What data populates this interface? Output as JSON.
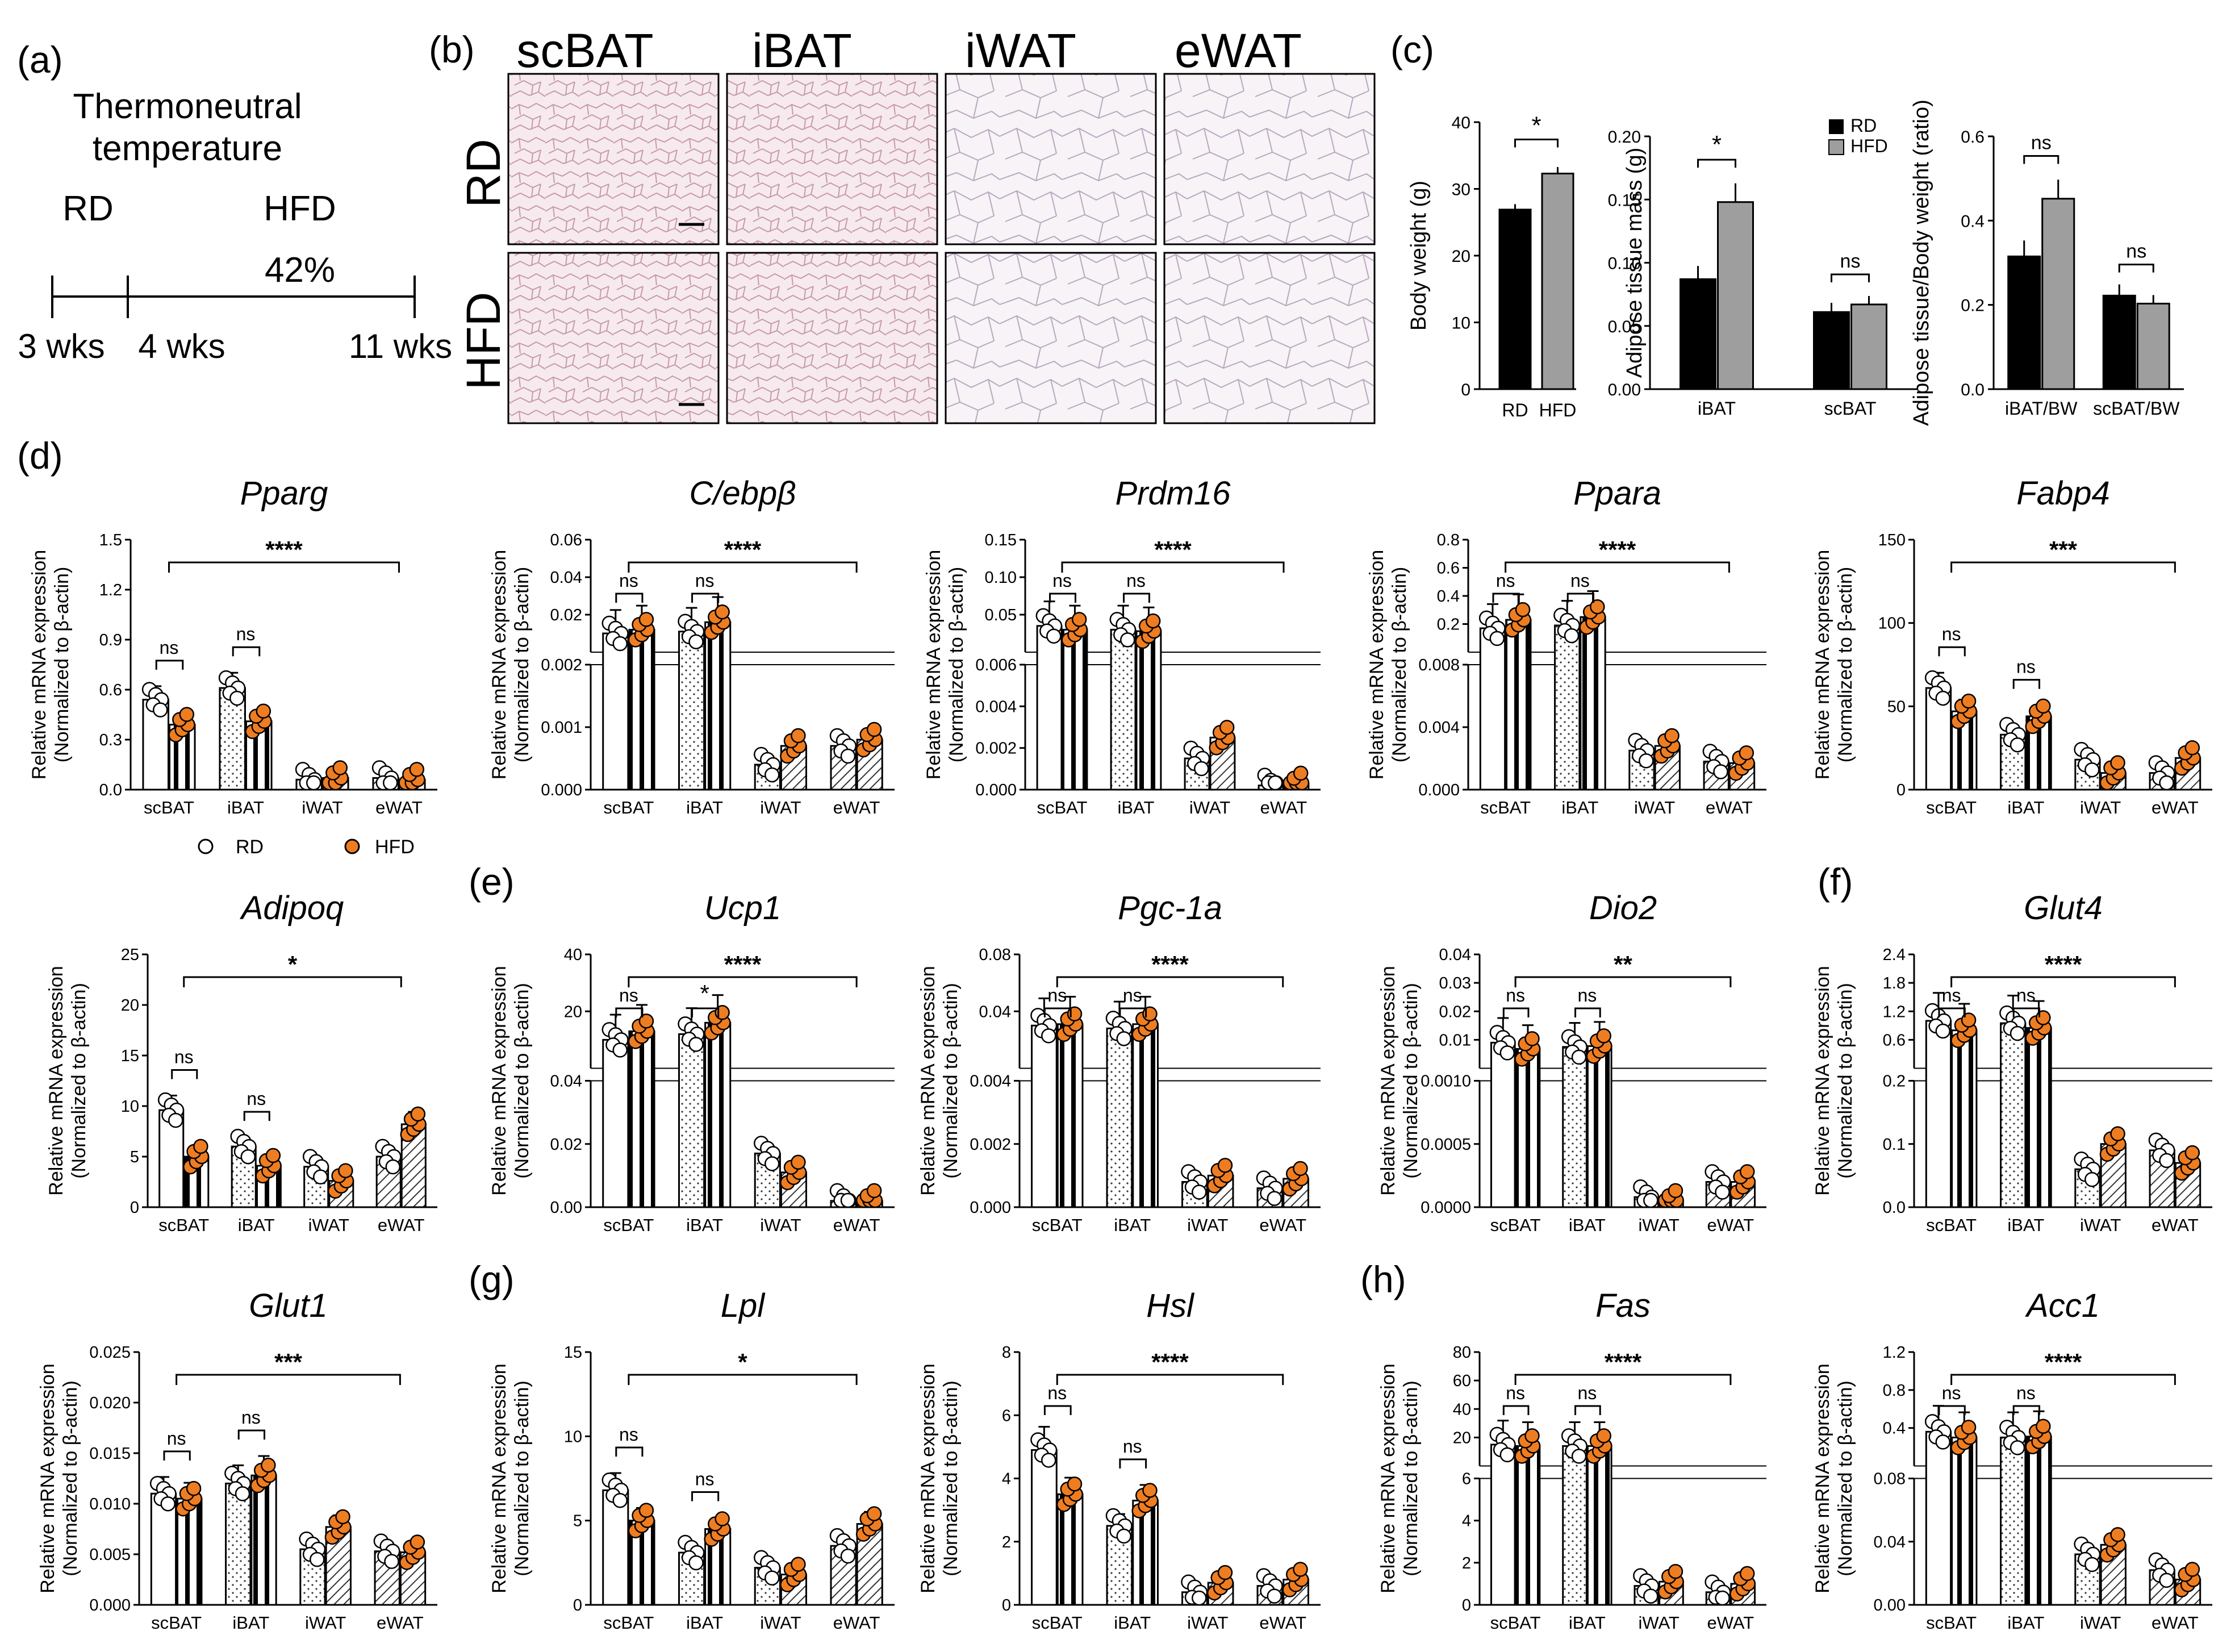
{
  "colors": {
    "rd_fill": "#ffffff",
    "hfd_fill": "#ee7d21",
    "black": "#000000",
    "grey": "#9e9e9e",
    "tissue_pink": "#ecd4d8",
    "tissue_light": "#f3eef3"
  },
  "panel_a": {
    "letter": "(a)",
    "condition_line1": "Thermoneutral",
    "condition_line2": "temperature",
    "rd_label": "RD",
    "hfd_label": "HFD",
    "hfd_pct": "42%",
    "timepoints": [
      "3 wks",
      "4 wks",
      "11 wks"
    ]
  },
  "panel_b": {
    "letter": "(b)",
    "columns": [
      "scBAT",
      "iBAT",
      "iWAT",
      "eWAT"
    ],
    "rows": [
      "RD",
      "HFD"
    ]
  },
  "panel_c": {
    "letter": "(c)",
    "charts": [
      {
        "ylabel": "Body weight (g)",
        "ticks": [
          "0",
          "10",
          "20",
          "30",
          "40"
        ],
        "ylim": [
          0,
          40
        ],
        "series": [
          {
            "name": "RD",
            "values": [
              26.9
            ]
          },
          {
            "name": "HFD",
            "values": [
              32.3
            ]
          }
        ],
        "xtick": [
          "RD",
          "HFD"
        ],
        "sig": [
          "*"
        ]
      },
      {
        "ylabel": "Adipose tissue mass (g)",
        "ticks": [
          "0.00",
          "0.05",
          "0.10",
          "0.15",
          "0.20"
        ],
        "ylim": [
          0,
          0.2
        ],
        "categories": [
          "iBAT",
          "scBAT"
        ],
        "series": [
          {
            "name": "RD",
            "values": [
              0.087,
              0.061
            ]
          },
          {
            "name": "HFD",
            "values": [
              0.148,
              0.067
            ]
          }
        ],
        "sig": [
          "*",
          "ns"
        ]
      },
      {
        "ylabel": "Adipose tissue/Body weight (ratio)",
        "ticks": [
          "0.0",
          "0.2",
          "0.4",
          "0.6"
        ],
        "ylim": [
          0,
          0.6
        ],
        "categories": [
          "iBAT/BW",
          "scBAT/BW"
        ],
        "series": [
          {
            "name": "RD",
            "values": [
              0.315,
              0.222
            ]
          },
          {
            "name": "HFD",
            "values": [
              0.452,
              0.203
            ]
          }
        ],
        "sig": [
          "ns",
          "ns"
        ]
      }
    ],
    "legend": [
      "RD",
      "HFD"
    ]
  },
  "common": {
    "ylabel_line1": "Relative mRNA expression",
    "ylabel_line2": "(Normalized to β-actin)",
    "tissues": [
      "scBAT",
      "iBAT",
      "iWAT",
      "eWAT"
    ],
    "legend": [
      "RD",
      "HFD"
    ]
  },
  "panel_letters": {
    "d": "(d)",
    "e": "(e)",
    "f": "(f)",
    "g": "(g)",
    "h": "(h)"
  },
  "chart_data": [
    {
      "type": "bar",
      "title": "Pparg",
      "overall_sig": "****",
      "pair_sig": [
        "ns",
        "ns"
      ],
      "ticks": [
        "0.0",
        "0.3",
        "0.6",
        "0.9",
        "1.2",
        "1.5"
      ],
      "ylim": [
        0,
        1.5
      ],
      "series": [
        {
          "name": "RD",
          "values": [
            0.54,
            0.61,
            0.06,
            0.07
          ]
        },
        {
          "name": "HFD",
          "values": [
            0.39,
            0.41,
            0.07,
            0.06
          ]
        }
      ]
    },
    {
      "type": "bar",
      "title": "C/ebpβ",
      "overall_sig": "****",
      "pair_sig": [
        "ns",
        "ns"
      ],
      "broken": true,
      "ticks_low": [
        "0.000",
        "0.001",
        "0.002"
      ],
      "ticks_high": [
        "0.02",
        "0.04",
        "0.06"
      ],
      "series": [
        {
          "name": "RD",
          "values": [
            0.01,
            0.011,
            0.0004,
            0.0007
          ]
        },
        {
          "name": "HFD",
          "values": [
            0.012,
            0.016,
            0.0007,
            0.0008
          ]
        }
      ]
    },
    {
      "type": "bar",
      "title": "Prdm16",
      "overall_sig": "****",
      "pair_sig": [
        "ns",
        "ns"
      ],
      "broken": true,
      "ticks_low": [
        "0.000",
        "0.002",
        "0.004",
        "0.006"
      ],
      "ticks_high": [
        "0.05",
        "0.10",
        "0.15"
      ],
      "series": [
        {
          "name": "RD",
          "values": [
            0.035,
            0.03,
            0.0015,
            0.0002
          ]
        },
        {
          "name": "HFD",
          "values": [
            0.03,
            0.028,
            0.0025,
            0.0003
          ]
        }
      ]
    },
    {
      "type": "bar",
      "title": "Ppara",
      "overall_sig": "****",
      "pair_sig": [
        "ns",
        "ns"
      ],
      "broken": true,
      "ticks_low": [
        "0.000",
        "0.004",
        "0.008"
      ],
      "ticks_high": [
        "0.2",
        "0.4",
        "0.6",
        "0.8"
      ],
      "series": [
        {
          "name": "RD",
          "values": [
            0.17,
            0.19,
            0.0025,
            0.0018
          ]
        },
        {
          "name": "HFD",
          "values": [
            0.23,
            0.25,
            0.0028,
            0.0017
          ]
        }
      ]
    },
    {
      "type": "bar",
      "title": "Fabp4",
      "overall_sig": "***",
      "pair_sig": [
        "ns",
        "ns"
      ],
      "ticks": [
        "0",
        "50",
        "100",
        "150"
      ],
      "ylim": [
        0,
        150
      ],
      "series": [
        {
          "name": "RD",
          "values": [
            61,
            33,
            18,
            10
          ]
        },
        {
          "name": "HFD",
          "values": [
            47,
            44,
            10,
            19
          ]
        }
      ]
    },
    {
      "type": "bar",
      "title": "Adipoq",
      "overall_sig": "*",
      "pair_sig": [
        "ns",
        "ns"
      ],
      "ticks": [
        "0",
        "5",
        "10",
        "15",
        "20",
        "25"
      ],
      "ylim": [
        0,
        25
      ],
      "series": [
        {
          "name": "RD",
          "values": [
            9.6,
            6.0,
            4.0,
            5.0
          ]
        },
        {
          "name": "HFD",
          "values": [
            5.0,
            4.1,
            2.6,
            8.2
          ]
        }
      ]
    },
    {
      "type": "bar",
      "title": "Ucp1",
      "overall_sig": "****",
      "pair_sig": [
        "ns",
        "*"
      ],
      "broken": true,
      "ticks_low": [
        "0.00",
        "0.02",
        "0.04"
      ],
      "ticks_high": [
        "20",
        "40"
      ],
      "series": [
        {
          "name": "RD",
          "values": [
            10,
            12,
            0.017,
            0.002
          ]
        },
        {
          "name": "HFD",
          "values": [
            13,
            16,
            0.011,
            0.002
          ]
        }
      ]
    },
    {
      "type": "bar",
      "title": "Pgc-1a",
      "overall_sig": "****",
      "pair_sig": [
        "ns",
        "ns"
      ],
      "broken": true,
      "ticks_low": [
        "0.000",
        "0.002",
        "0.004"
      ],
      "ticks_high": [
        "0.04",
        "0.08"
      ],
      "series": [
        {
          "name": "RD",
          "values": [
            0.03,
            0.028,
            0.0008,
            0.0006
          ]
        },
        {
          "name": "HFD",
          "values": [
            0.031,
            0.031,
            0.001,
            0.0009
          ]
        }
      ]
    },
    {
      "type": "bar",
      "title": "Dio2",
      "overall_sig": "**",
      "pair_sig": [
        "ns",
        "ns"
      ],
      "broken": true,
      "ticks_low": [
        "0.0000",
        "0.0005",
        "0.0010"
      ],
      "ticks_high": [
        "0.01",
        "0.02",
        "0.03",
        "0.04"
      ],
      "series": [
        {
          "name": "RD",
          "values": [
            0.009,
            0.0075,
            8e-05,
            0.0002
          ]
        },
        {
          "name": "HFD",
          "values": [
            0.0068,
            0.0078,
            5e-05,
            0.0002
          ]
        }
      ]
    },
    {
      "type": "bar",
      "title": "Glut4",
      "overall_sig": "****",
      "pair_sig": [
        "ns",
        "ns"
      ],
      "broken": true,
      "ticks_low": [
        "0.0",
        "0.1",
        "0.2"
      ],
      "ticks_high": [
        "0.6",
        "1.2",
        "1.8",
        "2.4"
      ],
      "series": [
        {
          "name": "RD",
          "values": [
            1.0,
            0.95,
            0.06,
            0.09
          ]
        },
        {
          "name": "HFD",
          "values": [
            0.8,
            0.85,
            0.1,
            0.07
          ]
        }
      ]
    },
    {
      "type": "bar",
      "title": "Glut1",
      "overall_sig": "***",
      "pair_sig": [
        "ns",
        "ns"
      ],
      "ticks": [
        "0.000",
        "0.005",
        "0.010",
        "0.015",
        "0.020",
        "0.025"
      ],
      "ylim": [
        0,
        0.025
      ],
      "series": [
        {
          "name": "RD",
          "values": [
            0.011,
            0.012,
            0.0055,
            0.0053
          ]
        },
        {
          "name": "HFD",
          "values": [
            0.0105,
            0.0128,
            0.0077,
            0.0052
          ]
        }
      ]
    },
    {
      "type": "bar",
      "title": "Lpl",
      "overall_sig": "*",
      "pair_sig": [
        "ns",
        "ns"
      ],
      "ticks": [
        "0",
        "5",
        "10",
        "15"
      ],
      "ylim": [
        0,
        15
      ],
      "series": [
        {
          "name": "RD",
          "values": [
            6.8,
            3.1,
            2.2,
            3.5
          ]
        },
        {
          "name": "HFD",
          "values": [
            5.0,
            4.5,
            1.8,
            4.8
          ]
        }
      ]
    },
    {
      "type": "bar",
      "title": "Hsl",
      "overall_sig": "****",
      "pair_sig": [
        "ns",
        "ns"
      ],
      "ticks": [
        "0",
        "2",
        "4",
        "6",
        "8"
      ],
      "ylim": [
        0,
        8
      ],
      "series": [
        {
          "name": "RD",
          "values": [
            4.9,
            2.5,
            0.4,
            0.6
          ]
        },
        {
          "name": "HFD",
          "values": [
            3.5,
            3.3,
            0.7,
            0.8
          ]
        }
      ]
    },
    {
      "type": "bar",
      "title": "Fas",
      "overall_sig": "****",
      "pair_sig": [
        "ns",
        "ns"
      ],
      "broken": true,
      "ticks_low": [
        "0",
        "2",
        "4",
        "6"
      ],
      "ticks_high": [
        "20",
        "40",
        "60",
        "80"
      ],
      "series": [
        {
          "name": "RD",
          "values": [
            15,
            14,
            0.9,
            0.6
          ]
        },
        {
          "name": "HFD",
          "values": [
            14,
            14,
            1.1,
            1.0
          ]
        }
      ]
    },
    {
      "type": "bar",
      "title": "Acc1",
      "overall_sig": "****",
      "pair_sig": [
        "ns",
        "ns"
      ],
      "broken": true,
      "ticks_low": [
        "0.00",
        "0.04",
        "0.08"
      ],
      "ticks_high": [
        "0.4",
        "0.8",
        "1.2"
      ],
      "series": [
        {
          "name": "RD",
          "values": [
            0.36,
            0.3,
            0.032,
            0.022
          ]
        },
        {
          "name": "HFD",
          "values": [
            0.3,
            0.31,
            0.038,
            0.016
          ]
        }
      ]
    }
  ]
}
